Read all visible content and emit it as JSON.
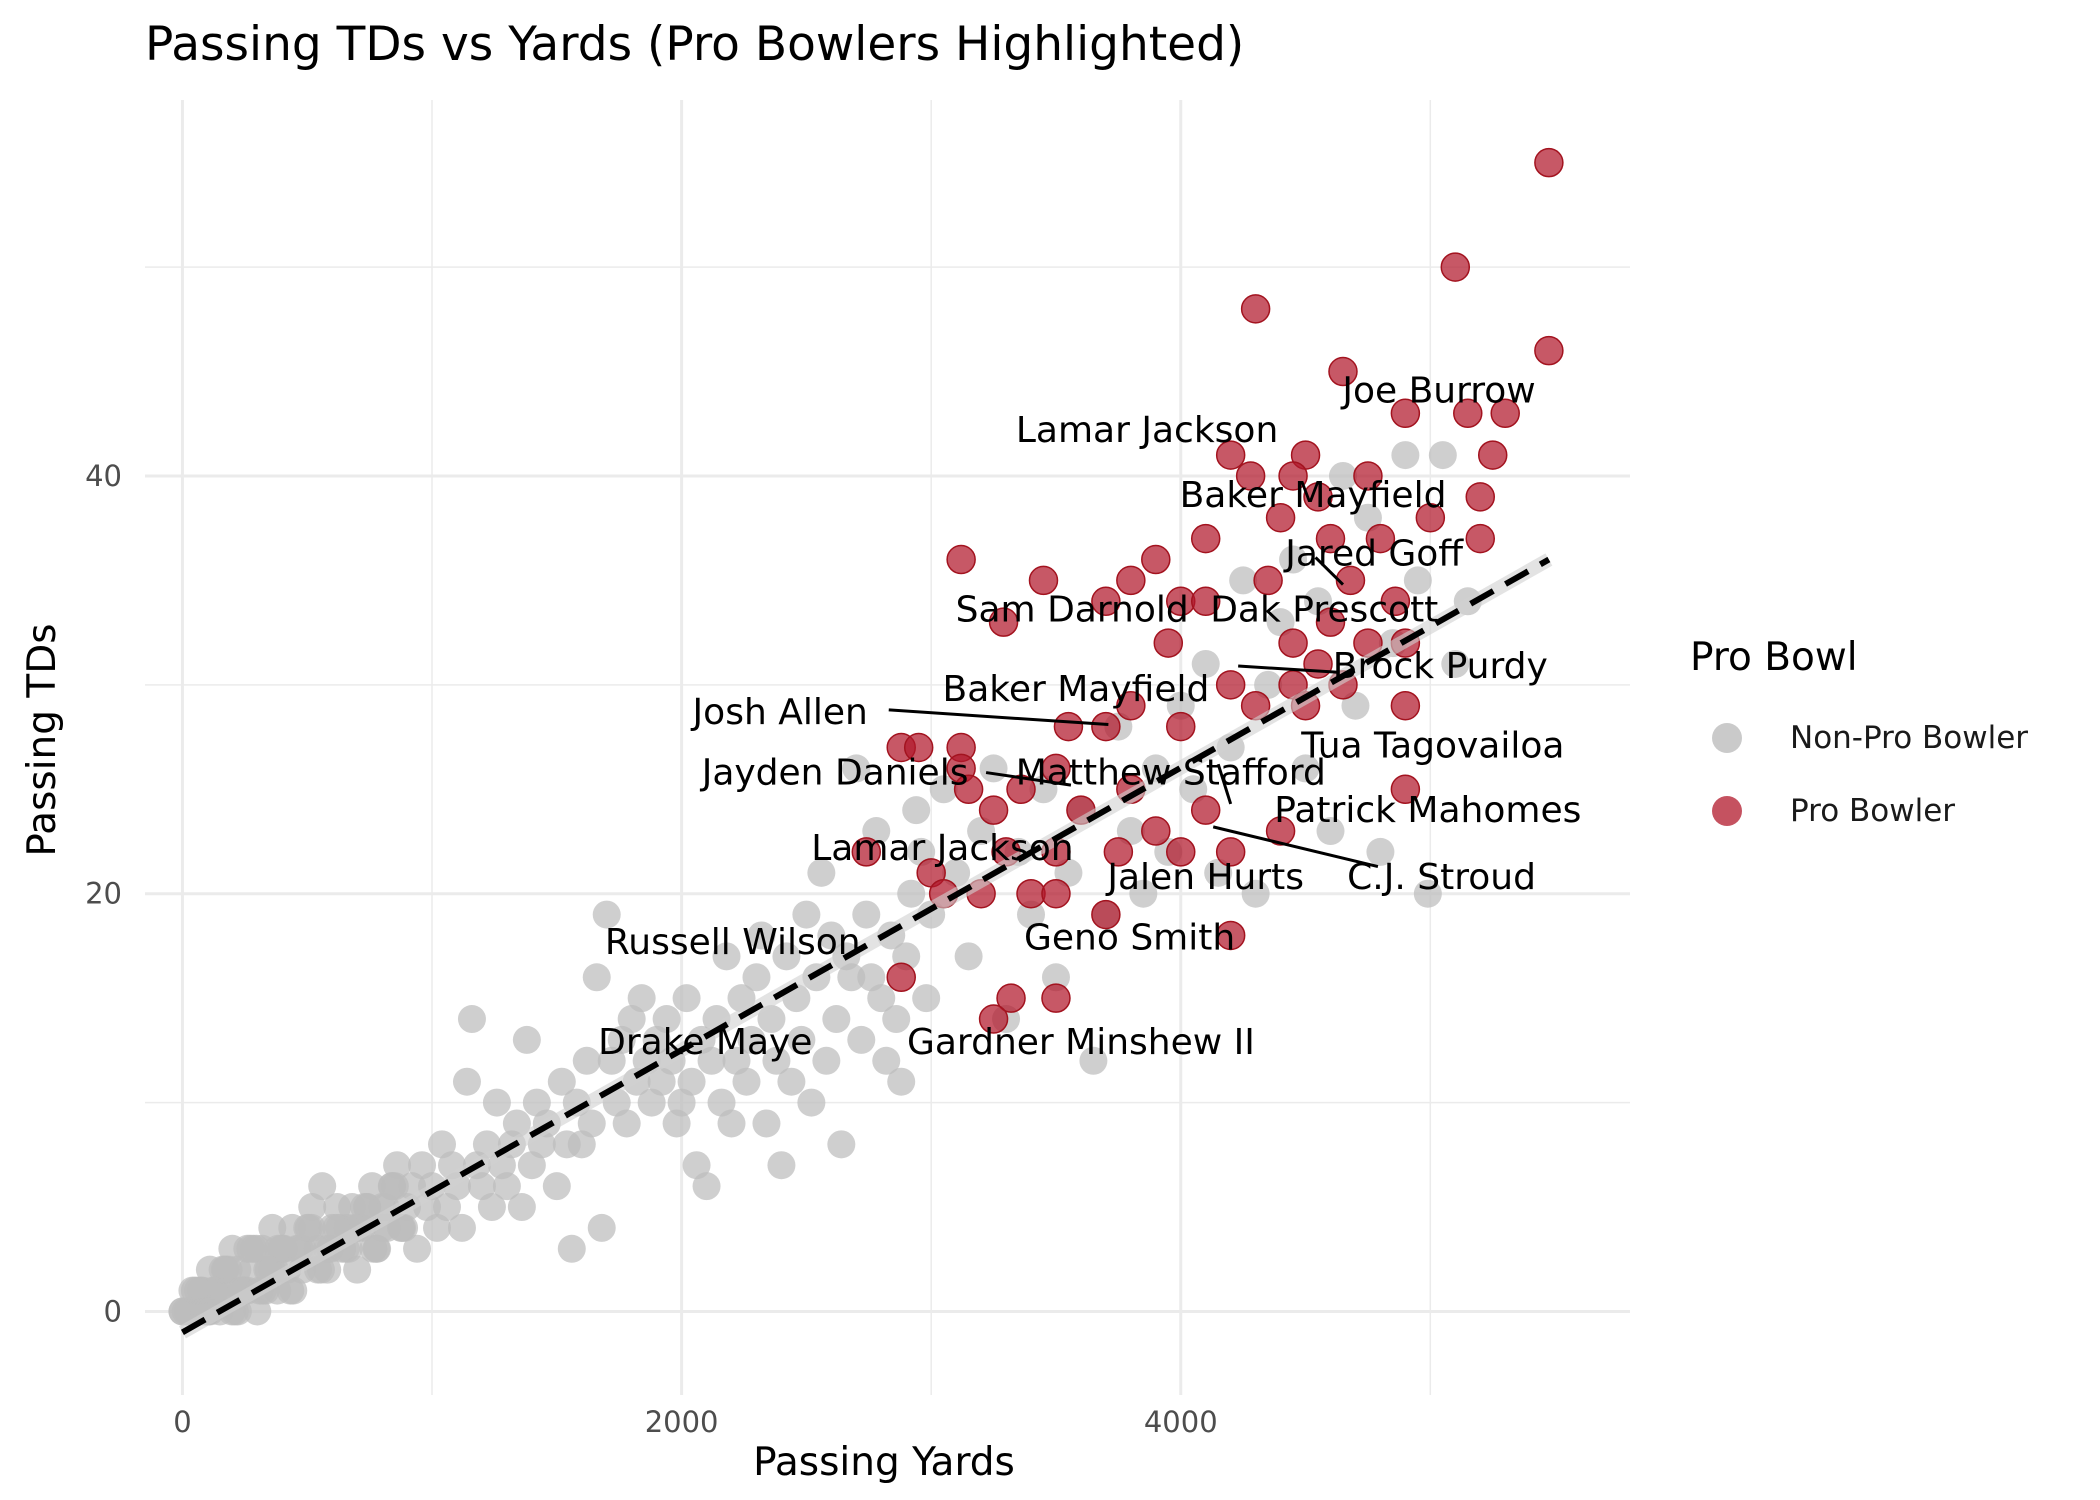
{
  "chart_data": {
    "type": "scatter",
    "title": "Passing TDs vs Yards (Pro Bowlers Highlighted)",
    "xlabel": "Passing Yards",
    "ylabel": "Passing TDs",
    "xlim": [
      -150,
      5800
    ],
    "ylim": [
      -4,
      58
    ],
    "xticks": [
      0,
      2000,
      4000
    ],
    "yticks": [
      0,
      20,
      40
    ],
    "grid": true,
    "legend": {
      "title": "Pro Bowl",
      "placement": "right",
      "entries": [
        "Non-Pro Bowler",
        "Pro Bowler"
      ]
    },
    "colors": {
      "non_pro": "#bdbdbd",
      "pro": "#b2182b",
      "trend": "#000000",
      "grid": "#ebebeb"
    },
    "trend_line": {
      "style": "dashed",
      "x": [
        0,
        5475
      ],
      "y": [
        -1,
        36
      ]
    },
    "series": [
      {
        "name": "Non-Pro Bowler",
        "points": [
          [
            0,
            0
          ],
          [
            20,
            0
          ],
          [
            40,
            1
          ],
          [
            60,
            0
          ],
          [
            80,
            1
          ],
          [
            100,
            0
          ],
          [
            110,
            2
          ],
          [
            130,
            1
          ],
          [
            150,
            0
          ],
          [
            170,
            2
          ],
          [
            190,
            1
          ],
          [
            200,
            3
          ],
          [
            220,
            2
          ],
          [
            240,
            1
          ],
          [
            260,
            3
          ],
          [
            280,
            2
          ],
          [
            300,
            0
          ],
          [
            320,
            3
          ],
          [
            340,
            2
          ],
          [
            360,
            4
          ],
          [
            380,
            1
          ],
          [
            400,
            3
          ],
          [
            420,
            2
          ],
          [
            440,
            4
          ],
          [
            460,
            3
          ],
          [
            480,
            2
          ],
          [
            500,
            4
          ],
          [
            520,
            5
          ],
          [
            540,
            3
          ],
          [
            560,
            6
          ],
          [
            580,
            2
          ],
          [
            600,
            4
          ],
          [
            620,
            5
          ],
          [
            640,
            3
          ],
          [
            660,
            4
          ],
          [
            680,
            5
          ],
          [
            700,
            2
          ],
          [
            720,
            4
          ],
          [
            740,
            5
          ],
          [
            760,
            6
          ],
          [
            780,
            3
          ],
          [
            800,
            5
          ],
          [
            820,
            4
          ],
          [
            840,
            6
          ],
          [
            860,
            7
          ],
          [
            880,
            4
          ],
          [
            900,
            5
          ],
          [
            920,
            6
          ],
          [
            940,
            3
          ],
          [
            960,
            7
          ],
          [
            980,
            5
          ],
          [
            1000,
            6
          ],
          [
            1020,
            4
          ],
          [
            1040,
            8
          ],
          [
            1060,
            5
          ],
          [
            1080,
            7
          ],
          [
            1100,
            6
          ],
          [
            1120,
            4
          ],
          [
            1140,
            11
          ],
          [
            1160,
            14
          ],
          [
            1180,
            7
          ],
          [
            1200,
            6
          ],
          [
            1220,
            8
          ],
          [
            1240,
            5
          ],
          [
            1260,
            10
          ],
          [
            1280,
            7
          ],
          [
            1300,
            6
          ],
          [
            1320,
            8
          ],
          [
            1340,
            9
          ],
          [
            1360,
            5
          ],
          [
            1380,
            13
          ],
          [
            1400,
            7
          ],
          [
            1420,
            10
          ],
          [
            1440,
            8
          ],
          [
            1460,
            9
          ],
          [
            1500,
            6
          ],
          [
            1520,
            11
          ],
          [
            1540,
            8
          ],
          [
            1560,
            3
          ],
          [
            1580,
            10
          ],
          [
            1600,
            8
          ],
          [
            1620,
            12
          ],
          [
            1640,
            9
          ],
          [
            1660,
            16
          ],
          [
            1680,
            4
          ],
          [
            1700,
            19
          ],
          [
            1720,
            12
          ],
          [
            1740,
            10
          ],
          [
            1760,
            13
          ],
          [
            1780,
            9
          ],
          [
            1800,
            14
          ],
          [
            1820,
            11
          ],
          [
            1840,
            15
          ],
          [
            1860,
            12
          ],
          [
            1880,
            10
          ],
          [
            1900,
            13
          ],
          [
            1920,
            11
          ],
          [
            1940,
            14
          ],
          [
            1960,
            12
          ],
          [
            1980,
            9
          ],
          [
            2000,
            10
          ],
          [
            2020,
            15
          ],
          [
            2040,
            11
          ],
          [
            2060,
            7
          ],
          [
            2080,
            13
          ],
          [
            2100,
            6
          ],
          [
            2120,
            12
          ],
          [
            2140,
            14
          ],
          [
            2160,
            10
          ],
          [
            2180,
            17
          ],
          [
            2200,
            9
          ],
          [
            2220,
            12
          ],
          [
            2240,
            15
          ],
          [
            2260,
            11
          ],
          [
            2280,
            13
          ],
          [
            2300,
            16
          ],
          [
            2320,
            18
          ],
          [
            2340,
            9
          ],
          [
            2360,
            14
          ],
          [
            2380,
            12
          ],
          [
            2400,
            7
          ],
          [
            2420,
            17
          ],
          [
            2440,
            11
          ],
          [
            2460,
            15
          ],
          [
            2480,
            13
          ],
          [
            2500,
            19
          ],
          [
            2520,
            10
          ],
          [
            2540,
            16
          ],
          [
            2560,
            21
          ],
          [
            2580,
            12
          ],
          [
            2600,
            18
          ],
          [
            2620,
            14
          ],
          [
            2640,
            8
          ],
          [
            2660,
            17
          ],
          [
            2680,
            16
          ],
          [
            2700,
            26
          ],
          [
            2720,
            13
          ],
          [
            2740,
            19
          ],
          [
            2760,
            16
          ],
          [
            2780,
            23
          ],
          [
            2800,
            15
          ],
          [
            2820,
            12
          ],
          [
            2840,
            18
          ],
          [
            2860,
            14
          ],
          [
            2880,
            11
          ],
          [
            2900,
            17
          ],
          [
            2920,
            20
          ],
          [
            2940,
            24
          ],
          [
            2960,
            22
          ],
          [
            2980,
            15
          ],
          [
            3000,
            19
          ],
          [
            3050,
            25
          ],
          [
            3100,
            21
          ],
          [
            3150,
            17
          ],
          [
            3200,
            23
          ],
          [
            3250,
            26
          ],
          [
            3300,
            14
          ],
          [
            3350,
            22
          ],
          [
            3400,
            19
          ],
          [
            3450,
            25
          ],
          [
            3500,
            16
          ],
          [
            3550,
            21
          ],
          [
            3600,
            24
          ],
          [
            3650,
            12
          ],
          [
            3700,
            19
          ],
          [
            3750,
            28
          ],
          [
            3800,
            23
          ],
          [
            3850,
            20
          ],
          [
            3900,
            26
          ],
          [
            3950,
            22
          ],
          [
            4000,
            29
          ],
          [
            4050,
            25
          ],
          [
            4100,
            31
          ],
          [
            4150,
            21
          ],
          [
            4200,
            27
          ],
          [
            4250,
            35
          ],
          [
            4300,
            20
          ],
          [
            4350,
            30
          ],
          [
            4400,
            33
          ],
          [
            4450,
            36
          ],
          [
            4500,
            26
          ],
          [
            4550,
            34
          ],
          [
            4600,
            23
          ],
          [
            4650,
            40
          ],
          [
            4700,
            29
          ],
          [
            4750,
            38
          ],
          [
            4800,
            22
          ],
          [
            4850,
            32
          ],
          [
            4900,
            41
          ],
          [
            4950,
            35
          ],
          [
            4990,
            20
          ],
          [
            5050,
            41
          ],
          [
            5100,
            31
          ],
          [
            5150,
            34
          ]
        ]
      },
      {
        "name": "Pro Bowler",
        "points": [
          [
            5475,
            55
          ],
          [
            5100,
            50
          ],
          [
            4300,
            48
          ],
          [
            5475,
            46
          ],
          [
            4650,
            45
          ],
          [
            4900,
            43
          ],
          [
            5150,
            43
          ],
          [
            5300,
            43
          ],
          [
            4200,
            41
          ],
          [
            4500,
            41
          ],
          [
            5250,
            41
          ],
          [
            4280,
            40
          ],
          [
            4450,
            40
          ],
          [
            4750,
            40
          ],
          [
            4550,
            39
          ],
          [
            5000,
            38
          ],
          [
            5200,
            39
          ],
          [
            4400,
            38
          ],
          [
            4800,
            37
          ],
          [
            5200,
            37
          ],
          [
            4100,
            37
          ],
          [
            4600,
            37
          ],
          [
            4680,
            35
          ],
          [
            3120,
            36
          ],
          [
            3450,
            35
          ],
          [
            3800,
            35
          ],
          [
            3900,
            36
          ],
          [
            4350,
            35
          ],
          [
            3700,
            34
          ],
          [
            4000,
            34
          ],
          [
            4860,
            34
          ],
          [
            3290,
            33
          ],
          [
            4100,
            34
          ],
          [
            4600,
            33
          ],
          [
            3950,
            32
          ],
          [
            4450,
            32
          ],
          [
            4750,
            32
          ],
          [
            4550,
            31
          ],
          [
            4900,
            32
          ],
          [
            4200,
            30
          ],
          [
            4450,
            30
          ],
          [
            4650,
            30
          ],
          [
            3800,
            29
          ],
          [
            4000,
            28
          ],
          [
            4300,
            29
          ],
          [
            4500,
            29
          ],
          [
            4900,
            29
          ],
          [
            3550,
            28
          ],
          [
            3700,
            28
          ],
          [
            2880,
            27
          ],
          [
            2950,
            27
          ],
          [
            3120,
            27
          ],
          [
            3360,
            25
          ],
          [
            3120,
            26
          ],
          [
            3500,
            26
          ],
          [
            3800,
            25
          ],
          [
            4100,
            24
          ],
          [
            4400,
            23
          ],
          [
            4900,
            25
          ],
          [
            3150,
            25
          ],
          [
            3250,
            24
          ],
          [
            3600,
            24
          ],
          [
            3900,
            23
          ],
          [
            2740,
            22
          ],
          [
            3300,
            22
          ],
          [
            3500,
            22
          ],
          [
            3750,
            22
          ],
          [
            4000,
            22
          ],
          [
            4200,
            22
          ],
          [
            3000,
            21
          ],
          [
            3050,
            20
          ],
          [
            3200,
            20
          ],
          [
            3400,
            20
          ],
          [
            3500,
            20
          ],
          [
            3700,
            19
          ],
          [
            4200,
            18
          ],
          [
            2880,
            16
          ],
          [
            3320,
            15
          ],
          [
            3500,
            15
          ],
          [
            3250,
            14
          ]
        ]
      }
    ],
    "annotations": [
      {
        "text": "Joe Burrow",
        "x": 5035,
        "y": 44.1
      },
      {
        "text": "Lamar Jackson",
        "x": 3865,
        "y": 42.2
      },
      {
        "text": "Baker Mayfield",
        "x": 4530,
        "y": 39.1
      },
      {
        "text": "Jared Goff",
        "x": 4775,
        "y": 36.3
      },
      {
        "text": "Dak Prescott",
        "x": 4575,
        "y": 33.6
      },
      {
        "text": "Sam Darnold",
        "x": 3565,
        "y": 33.6
      },
      {
        "text": "Brock Purdy",
        "x": 5040,
        "y": 30.9
      },
      {
        "text": "Baker Mayfield",
        "x": 3580,
        "y": 29.8
      },
      {
        "text": "Josh Allen",
        "x": 2395,
        "y": 28.7
      },
      {
        "text": "Tua Tagovailoa",
        "x": 5010,
        "y": 27.1
      },
      {
        "text": "Jayden Daniels",
        "x": 2615,
        "y": 25.8
      },
      {
        "text": "Matthew Stafford",
        "x": 3960,
        "y": 25.8
      },
      {
        "text": "Patrick Mahomes",
        "x": 4990,
        "y": 24.0
      },
      {
        "text": "Lamar Jackson",
        "x": 3045,
        "y": 22.2
      },
      {
        "text": "Jalen Hurts",
        "x": 4100,
        "y": 20.8
      },
      {
        "text": "C.J. Stroud",
        "x": 5045,
        "y": 20.8
      },
      {
        "text": "Geno Smith",
        "x": 3795,
        "y": 17.9
      },
      {
        "text": "Russell Wilson",
        "x": 2205,
        "y": 17.7
      },
      {
        "text": "Drake Maye",
        "x": 2095,
        "y": 12.9
      },
      {
        "text": "Gardner Minshew II",
        "x": 3600,
        "y": 12.9
      }
    ],
    "leader_lines": [
      [
        2830,
        28.8,
        3710,
        28.1
      ],
      [
        3220,
        25.8,
        3560,
        25.2
      ],
      [
        4150,
        26.2,
        4200,
        24.3
      ],
      [
        4130,
        23.2,
        4790,
        21.3
      ],
      [
        4230,
        30.9,
        4630,
        30.6
      ],
      [
        4540,
        36.1,
        4650,
        34.8
      ]
    ]
  }
}
